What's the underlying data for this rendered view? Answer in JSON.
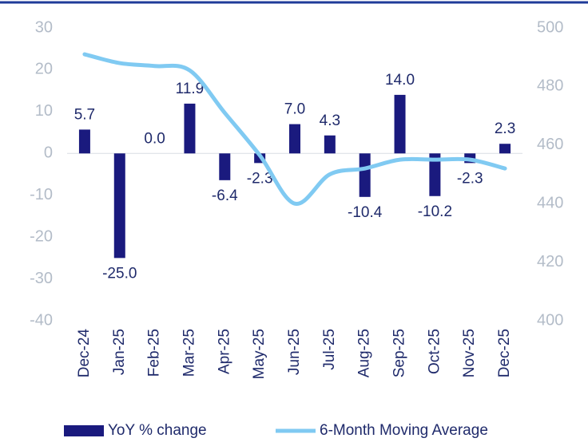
{
  "chart_data": {
    "type": "bar_line",
    "categories": [
      "Dec-24",
      "Jan-25",
      "Feb-25",
      "Mar-25",
      "Apr-25",
      "May-25",
      "Jun-25",
      "Jul-25",
      "Aug-25",
      "Sep-25",
      "Oct-25",
      "Nov-25",
      "Dec-25"
    ],
    "series": [
      {
        "name": "YoY % change",
        "type": "bar",
        "color": "#1a1a7e",
        "axis": "y",
        "values": [
          5.7,
          -25.0,
          0.0,
          11.9,
          -6.4,
          -2.3,
          7.0,
          4.3,
          -10.4,
          14.0,
          -10.2,
          -2.3,
          2.3
        ],
        "value_labels": [
          "5.7",
          "-25.0",
          "0.0",
          "11.9",
          "-6.4",
          "-2.3",
          "7.0",
          "4.3",
          "-10.4",
          "14.0",
          "-10.2",
          "-2.3",
          "2.3"
        ]
      },
      {
        "name": "6-Month Moving Average",
        "type": "line",
        "color": "#80caf2",
        "axis": "y2",
        "values": [
          491,
          488,
          487,
          485.5,
          471,
          456.5,
          440,
          450,
          452,
          455,
          455,
          455,
          452
        ]
      }
    ],
    "ylim": [
      -40,
      30
    ],
    "yticks": [
      30,
      20,
      10,
      0,
      -10,
      -20,
      -30,
      -40
    ],
    "y2lim": [
      400,
      500
    ],
    "y2ticks": [
      500,
      480,
      460,
      440,
      420,
      400
    ],
    "grid": false,
    "legend": "bottom"
  }
}
